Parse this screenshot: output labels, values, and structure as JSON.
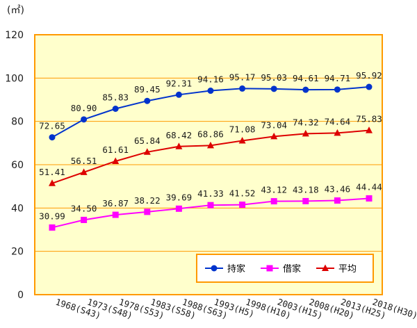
{
  "chart_data": {
    "type": "line",
    "unit_label": "(㎡)",
    "categories": [
      "1968(S43)",
      "1973(S48)",
      "1978(S53)",
      "1983(S58)",
      "1988(S63)",
      "1993(H5)",
      "1998(H10)",
      "2003(H15)",
      "2008(H20)",
      "2013(H25)",
      "2018(H30)"
    ],
    "ylim": [
      0,
      120
    ],
    "yticks": [
      0,
      20,
      40,
      60,
      80,
      100,
      120
    ],
    "grid": true,
    "legend_position": "bottom-right",
    "series": [
      {
        "name": "持家",
        "values": [
          72.65,
          80.9,
          85.83,
          89.45,
          92.31,
          94.16,
          95.17,
          95.03,
          94.61,
          94.71,
          95.92
        ],
        "labels": [
          "72.65",
          "80.90",
          "85.83",
          "89.45",
          "92.31",
          "94.16",
          "95.17",
          "95.03",
          "94.61",
          "94.71",
          "95.92"
        ],
        "color": "#0033cc",
        "marker": "circle"
      },
      {
        "name": "借家",
        "values": [
          30.99,
          34.5,
          36.87,
          38.22,
          39.69,
          41.33,
          41.52,
          43.12,
          43.18,
          43.46,
          44.44
        ],
        "labels": [
          "30.99",
          "34.50",
          "36.87",
          "38.22",
          "39.69",
          "41.33",
          "41.52",
          "43.12",
          "43.18",
          "43.46",
          "44.44"
        ],
        "color": "#ff00ff",
        "marker": "square"
      },
      {
        "name": "平均",
        "values": [
          51.41,
          56.51,
          61.61,
          65.84,
          68.42,
          68.86,
          71.08,
          73.04,
          74.32,
          74.64,
          75.83
        ],
        "labels": [
          "51.41",
          "56.51",
          "61.61",
          "65.84",
          "68.42",
          "68.86",
          "71.08",
          "73.04",
          "74.32",
          "74.64",
          "75.83"
        ],
        "color": "#dd0000",
        "marker": "triangle"
      }
    ],
    "colors": {
      "plot_background": "#ffffcc",
      "frame": "#ff9900",
      "gridline": "#ff9900"
    }
  }
}
